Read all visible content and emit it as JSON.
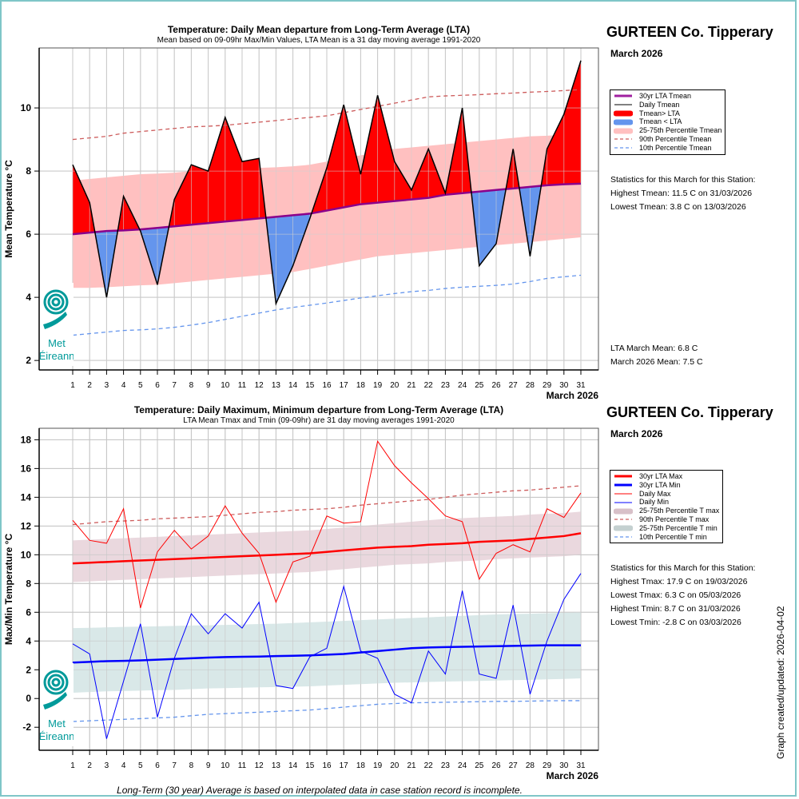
{
  "station": "GURTEEN Co. Tipperary",
  "month_label": "March 2026",
  "updated_label": "Graph created/updated:  2026-04-02",
  "footnote": "Long-Term (30 year) Average is based on interpolated data in case station record is incomplete.",
  "logo": {
    "line1": "Met",
    "line2": "Éireann"
  },
  "colors": {
    "above_fill": "#ff0000",
    "below_fill": "#6495ed",
    "lta_mean": "#8b008b",
    "band_mean": "#ffc0c0",
    "p90": "#cd5c5c",
    "p10": "#6495ed",
    "lta_max": "#ff0000",
    "lta_min": "#0000ff",
    "band_max": "#ead8de",
    "band_min": "#d9e8e8",
    "frame": "#7fc6c8"
  },
  "top_panel": {
    "legend": [
      {
        "label": "30yr LTA Tmean",
        "style": "line",
        "color": "#a020a0",
        "width": 3
      },
      {
        "label": "Daily Tmean",
        "style": "line",
        "color": "#000000",
        "width": 1
      },
      {
        "label": "Tmean> LTA",
        "style": "thick",
        "color": "#ff0000"
      },
      {
        "label": "Tmean < LTA",
        "style": "thick",
        "color": "#6495ed"
      },
      {
        "label": "25-75th Percentile Tmean",
        "style": "thick",
        "color": "#ffc0c0"
      },
      {
        "label": "90th Percentile Tmean",
        "style": "dash",
        "color": "#cd5c5c"
      },
      {
        "label": "10th Percentile Tmean",
        "style": "dash",
        "color": "#6495ed"
      }
    ],
    "stats": [
      "Statistics for this March for this Station:",
      "Highest Tmean: 11.5 C on 31/03/2026",
      "Lowest Tmean: 3.8 C on 13/03/2026"
    ],
    "means": [
      "LTA March Mean: 6.8 C",
      "March 2026 Mean: 7.5 C"
    ]
  },
  "bottom_panel": {
    "legend": [
      {
        "label": "30yr LTA Max",
        "style": "line",
        "color": "#ff0000",
        "width": 3
      },
      {
        "label": "30yr LTA Min",
        "style": "line",
        "color": "#0000ff",
        "width": 3
      },
      {
        "label": "Daily Max",
        "style": "line",
        "color": "#ff0000",
        "width": 1
      },
      {
        "label": "Daily Min",
        "style": "line",
        "color": "#0000ff",
        "width": 1
      },
      {
        "label": "25-75th Percentile T max",
        "style": "thick",
        "color": "#d8c0c8"
      },
      {
        "label": "90th Percentile T max",
        "style": "dash",
        "color": "#cd5c5c"
      },
      {
        "label": "25-75th Percentile T min",
        "style": "thick",
        "color": "#c4d0d0"
      },
      {
        "label": "10th Percentile T min",
        "style": "dash",
        "color": "#6495ed"
      }
    ],
    "stats": [
      "Statistics for this March for this Station:",
      "Highest Tmax: 17.9 C on 19/03/2026",
      "Lowest Tmax: 6.3 C on 05/03/2026",
      "Highest Tmin: 8.7 C on 31/03/2026",
      "Lowest Tmin: -2.8 C on 03/03/2026"
    ]
  },
  "chart_data": [
    {
      "type": "area",
      "title": "Temperature: Daily Mean departure from Long-Term Average (LTA)",
      "subtitle": "Mean based on 09-09hr Max/Min Values, LTA Mean is a 31 day moving average 1991-2020",
      "xlabel": "March 2026",
      "ylabel": "Mean Temperature °C",
      "x": [
        1,
        2,
        3,
        4,
        5,
        6,
        7,
        8,
        9,
        10,
        11,
        12,
        13,
        14,
        15,
        16,
        17,
        18,
        19,
        20,
        21,
        22,
        23,
        24,
        25,
        26,
        27,
        28,
        29,
        30,
        31
      ],
      "xticks": [
        "1",
        "2",
        "3",
        "4",
        "5",
        "6",
        "7",
        "8",
        "9",
        "10",
        "11",
        "12",
        "13",
        "14",
        "15",
        "16",
        "17",
        "18",
        "19",
        "20",
        "21",
        "22",
        "23",
        "24",
        "25",
        "26",
        "27",
        "28",
        "29",
        "30",
        "31"
      ],
      "yticks": [
        2,
        4,
        6,
        8,
        10
      ],
      "ylim": [
        1.7,
        11.9
      ],
      "grid": true,
      "legend": "right",
      "series": [
        {
          "name": "Daily Tmean",
          "values": [
            8.2,
            7.0,
            4.0,
            7.2,
            6.1,
            4.4,
            7.1,
            8.2,
            8.0,
            9.7,
            8.3,
            8.4,
            3.8,
            5.0,
            6.5,
            8.1,
            10.1,
            7.9,
            10.4,
            8.3,
            7.4,
            8.7,
            7.3,
            10.0,
            5.0,
            5.7,
            8.7,
            5.3,
            8.7,
            9.8,
            11.5
          ]
        },
        {
          "name": "30yr LTA Tmean",
          "values": [
            6.0,
            6.05,
            6.1,
            6.12,
            6.15,
            6.2,
            6.25,
            6.3,
            6.35,
            6.4,
            6.45,
            6.5,
            6.55,
            6.6,
            6.65,
            6.75,
            6.85,
            6.95,
            7.0,
            7.05,
            7.1,
            7.15,
            7.25,
            7.3,
            7.35,
            7.4,
            7.45,
            7.5,
            7.55,
            7.58,
            7.6
          ]
        },
        {
          "name": "25th Percentile Tmean",
          "values": [
            4.3,
            4.3,
            4.32,
            4.35,
            4.38,
            4.4,
            4.45,
            4.5,
            4.55,
            4.6,
            4.65,
            4.7,
            4.75,
            4.8,
            4.9,
            5.0,
            5.1,
            5.2,
            5.3,
            5.35,
            5.4,
            5.45,
            5.5,
            5.55,
            5.6,
            5.65,
            5.7,
            5.75,
            5.8,
            5.85,
            5.9
          ]
        },
        {
          "name": "75th Percentile Tmean",
          "values": [
            7.7,
            7.75,
            7.8,
            7.85,
            7.9,
            7.92,
            7.95,
            8.0,
            8.02,
            8.05,
            8.08,
            8.1,
            8.12,
            8.15,
            8.2,
            8.3,
            8.4,
            8.5,
            8.6,
            8.7,
            8.75,
            8.8,
            8.85,
            8.9,
            8.95,
            9.0,
            9.05,
            9.1,
            9.12,
            9.15,
            9.2
          ]
        },
        {
          "name": "90th Percentile Tmean",
          "values": [
            9.0,
            9.05,
            9.1,
            9.2,
            9.25,
            9.3,
            9.35,
            9.4,
            9.42,
            9.45,
            9.5,
            9.55,
            9.6,
            9.65,
            9.7,
            9.75,
            9.85,
            9.95,
            10.05,
            10.15,
            10.25,
            10.35,
            10.38,
            10.4,
            10.42,
            10.45,
            10.47,
            10.5,
            10.52,
            10.55,
            10.58
          ]
        },
        {
          "name": "10th Percentile Tmean",
          "values": [
            2.8,
            2.85,
            2.9,
            2.95,
            2.97,
            3.0,
            3.05,
            3.12,
            3.2,
            3.3,
            3.4,
            3.5,
            3.6,
            3.68,
            3.75,
            3.82,
            3.9,
            3.98,
            4.05,
            4.12,
            4.18,
            4.22,
            4.28,
            4.32,
            4.35,
            4.38,
            4.42,
            4.5,
            4.6,
            4.65,
            4.7
          ]
        }
      ]
    },
    {
      "type": "line",
      "title": "Temperature: Daily Maximum, Minimum departure from Long-Term Average (LTA)",
      "subtitle": "LTA Mean Tmax and Tmin (09-09hr) are 31 day moving averages 1991-2020",
      "xlabel": "March 2026",
      "ylabel": "Max/Min Temperature °C",
      "x": [
        1,
        2,
        3,
        4,
        5,
        6,
        7,
        8,
        9,
        10,
        11,
        12,
        13,
        14,
        15,
        16,
        17,
        18,
        19,
        20,
        21,
        22,
        23,
        24,
        25,
        26,
        27,
        28,
        29,
        30,
        31
      ],
      "xticks": [
        "1",
        "2",
        "3",
        "4",
        "5",
        "6",
        "7",
        "8",
        "9",
        "10",
        "11",
        "12",
        "13",
        "14",
        "15",
        "16",
        "17",
        "18",
        "19",
        "20",
        "21",
        "22",
        "23",
        "24",
        "25",
        "26",
        "27",
        "28",
        "29",
        "30",
        "31"
      ],
      "yticks": [
        -2,
        0,
        2,
        4,
        6,
        8,
        10,
        12,
        14,
        16,
        18
      ],
      "ylim": [
        -3.6,
        18.8
      ],
      "grid": true,
      "legend": "right",
      "series": [
        {
          "name": "Daily Max",
          "values": [
            12.4,
            11.0,
            10.8,
            13.2,
            6.3,
            10.2,
            11.7,
            10.4,
            11.3,
            13.4,
            11.5,
            10.1,
            6.7,
            9.5,
            9.9,
            12.7,
            12.2,
            12.3,
            17.9,
            16.2,
            15.0,
            13.9,
            12.7,
            12.3,
            8.3,
            10.1,
            10.7,
            10.2,
            13.2,
            12.6,
            14.3
          ]
        },
        {
          "name": "Daily Min",
          "values": [
            3.8,
            3.1,
            -2.8,
            1.2,
            5.2,
            -1.3,
            2.8,
            5.9,
            4.5,
            5.9,
            4.9,
            6.7,
            0.9,
            0.7,
            2.9,
            3.5,
            7.8,
            3.3,
            2.8,
            0.3,
            -0.3,
            3.3,
            1.7,
            7.5,
            1.7,
            1.4,
            6.5,
            0.3,
            4.0,
            6.9,
            8.7
          ]
        },
        {
          "name": "30yr LTA Max",
          "values": [
            9.4,
            9.45,
            9.5,
            9.55,
            9.6,
            9.65,
            9.7,
            9.75,
            9.8,
            9.85,
            9.9,
            9.95,
            10.0,
            10.05,
            10.1,
            10.2,
            10.3,
            10.4,
            10.5,
            10.55,
            10.6,
            10.7,
            10.75,
            10.8,
            10.9,
            10.95,
            11.0,
            11.1,
            11.2,
            11.3,
            11.5
          ]
        },
        {
          "name": "30yr LTA Min",
          "values": [
            2.5,
            2.55,
            2.6,
            2.62,
            2.65,
            2.7,
            2.75,
            2.8,
            2.85,
            2.88,
            2.9,
            2.92,
            2.95,
            2.97,
            3.0,
            3.05,
            3.1,
            3.2,
            3.3,
            3.4,
            3.5,
            3.55,
            3.58,
            3.6,
            3.62,
            3.64,
            3.66,
            3.68,
            3.7,
            3.7,
            3.7
          ]
        },
        {
          "name": "25th Percentile T max",
          "values": [
            8.1,
            8.15,
            8.2,
            8.25,
            8.3,
            8.35,
            8.4,
            8.45,
            8.5,
            8.55,
            8.6,
            8.65,
            8.7,
            8.75,
            8.8,
            8.9,
            9.0,
            9.1,
            9.2,
            9.3,
            9.35,
            9.4,
            9.5,
            9.55,
            9.6,
            9.7,
            9.75,
            9.8,
            9.85,
            9.9,
            10.0
          ]
        },
        {
          "name": "75th Percentile T max",
          "values": [
            11.0,
            11.05,
            11.1,
            11.15,
            11.2,
            11.25,
            11.3,
            11.35,
            11.4,
            11.45,
            11.5,
            11.55,
            11.6,
            11.65,
            11.7,
            11.8,
            11.9,
            12.0,
            12.1,
            12.2,
            12.3,
            12.4,
            12.5,
            12.55,
            12.6,
            12.65,
            12.7,
            12.8,
            12.85,
            12.9,
            13.0
          ]
        },
        {
          "name": "90th Percentile T max",
          "values": [
            12.1,
            12.2,
            12.3,
            12.35,
            12.4,
            12.5,
            12.55,
            12.6,
            12.65,
            12.75,
            12.85,
            12.95,
            13.0,
            13.1,
            13.15,
            13.2,
            13.3,
            13.45,
            13.55,
            13.65,
            13.75,
            13.85,
            14.0,
            14.15,
            14.25,
            14.35,
            14.45,
            14.5,
            14.6,
            14.7,
            14.8
          ]
        },
        {
          "name": "25th Percentile T min",
          "values": [
            0.4,
            0.45,
            0.5,
            0.52,
            0.55,
            0.58,
            0.6,
            0.65,
            0.7,
            0.72,
            0.75,
            0.78,
            0.8,
            0.82,
            0.85,
            0.9,
            0.95,
            1.0,
            1.05,
            1.1,
            1.12,
            1.15,
            1.18,
            1.2,
            1.22,
            1.25,
            1.28,
            1.3,
            1.33,
            1.36,
            1.4
          ]
        },
        {
          "name": "75th Percentile T min",
          "values": [
            4.9,
            4.92,
            4.95,
            4.98,
            5.0,
            5.02,
            5.05,
            5.08,
            5.1,
            5.12,
            5.15,
            5.18,
            5.2,
            5.25,
            5.3,
            5.35,
            5.4,
            5.45,
            5.5,
            5.55,
            5.6,
            5.65,
            5.7,
            5.75,
            5.8,
            5.85,
            5.88,
            5.9,
            5.93,
            5.96,
            6.0
          ]
        },
        {
          "name": "10th Percentile T min",
          "values": [
            -1.6,
            -1.55,
            -1.5,
            -1.45,
            -1.4,
            -1.35,
            -1.3,
            -1.2,
            -1.1,
            -1.05,
            -1.0,
            -0.95,
            -0.9,
            -0.85,
            -0.8,
            -0.7,
            -0.6,
            -0.5,
            -0.4,
            -0.35,
            -0.3,
            -0.28,
            -0.26,
            -0.24,
            -0.22,
            -0.2,
            -0.2,
            -0.18,
            -0.16,
            -0.15,
            -0.15
          ]
        }
      ]
    }
  ]
}
